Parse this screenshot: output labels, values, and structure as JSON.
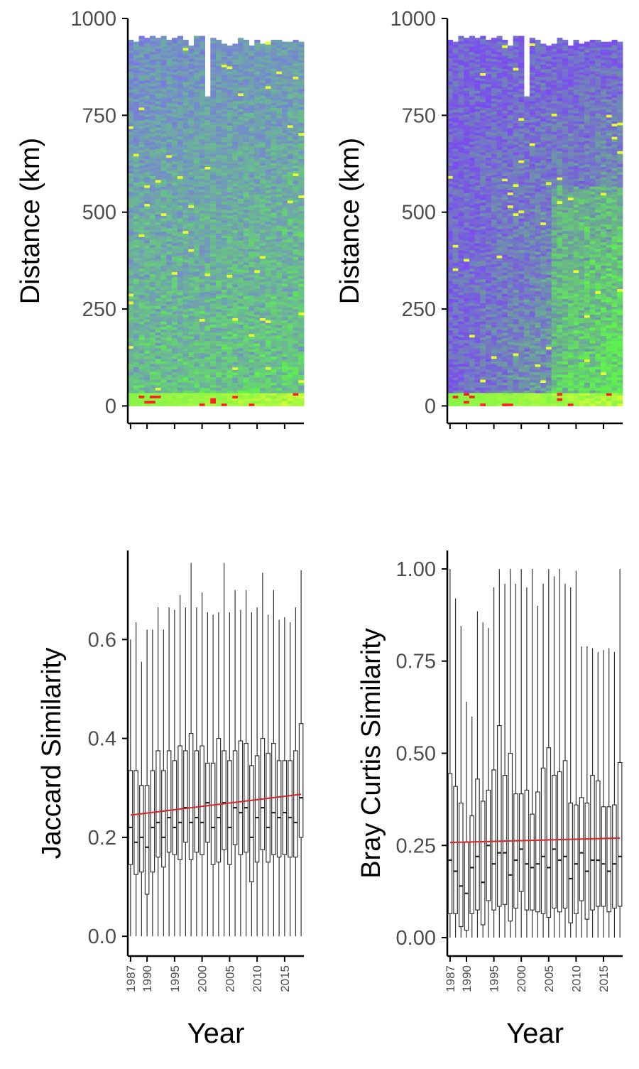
{
  "chart_data": [
    {
      "type": "heatmap",
      "panel": "top-left",
      "xlabel": "",
      "ylabel": "Distance (km)",
      "x_tick_values": [
        1987,
        1990,
        1995,
        2000,
        2005,
        2010,
        2015
      ],
      "x_tick_labels_shown": false,
      "xlim": [
        1986.5,
        2018.5
      ],
      "ylim": [
        -45,
        1000
      ],
      "y_ticks": [
        0,
        250,
        500,
        750,
        1000
      ],
      "years": [
        1987,
        1988,
        1989,
        1990,
        1991,
        1992,
        1993,
        1994,
        1995,
        1996,
        1997,
        1998,
        1999,
        2000,
        2001,
        2002,
        2003,
        2004,
        2005,
        2006,
        2007,
        2008,
        2009,
        2010,
        2011,
        2012,
        2013,
        2014,
        2015,
        2016,
        2017,
        2018
      ],
      "max_distance_km": [
        945,
        940,
        955,
        950,
        955,
        950,
        955,
        945,
        950,
        955,
        945,
        930,
        955,
        955,
        940,
        950,
        945,
        935,
        930,
        935,
        950,
        945,
        930,
        945,
        935,
        940,
        945,
        945,
        940,
        940,
        945,
        940
      ],
      "gaps": [
        {
          "year": 2001,
          "from_km": 800,
          "to_km": 960
        }
      ],
      "colors": {
        "low": "#7b6cf0",
        "mid": "#5ff04f",
        "high": "#e8ff30",
        "peak": "#ff2020"
      },
      "fill_description": "mostly blue/green rows, yellow-green band near 0 km"
    },
    {
      "type": "heatmap",
      "panel": "top-right",
      "xlabel": "",
      "ylabel": "Distance (km)",
      "x_tick_values": [
        1987,
        1990,
        1995,
        2000,
        2005,
        2010,
        2015
      ],
      "x_tick_labels_shown": false,
      "xlim": [
        1986.5,
        2018.5
      ],
      "ylim": [
        -45,
        1000
      ],
      "y_ticks": [
        0,
        250,
        500,
        750,
        1000
      ],
      "years": [
        1987,
        1988,
        1989,
        1990,
        1991,
        1992,
        1993,
        1994,
        1995,
        1996,
        1997,
        1998,
        1999,
        2000,
        2001,
        2002,
        2003,
        2004,
        2005,
        2006,
        2007,
        2008,
        2009,
        2010,
        2011,
        2012,
        2013,
        2014,
        2015,
        2016,
        2017,
        2018
      ],
      "max_distance_km": [
        945,
        940,
        955,
        950,
        955,
        950,
        955,
        945,
        950,
        955,
        945,
        930,
        955,
        955,
        940,
        950,
        945,
        935,
        930,
        935,
        950,
        945,
        930,
        945,
        935,
        940,
        945,
        945,
        940,
        940,
        945,
        940
      ],
      "gaps": [
        {
          "year": 2001,
          "from_km": 800,
          "to_km": 960
        }
      ],
      "colors": {
        "low": "#7b4cf0",
        "mid": "#5ff04f",
        "high": "#e8ff30",
        "peak": "#ff2020"
      },
      "fill_description": "more purple in upper rows, green/yellow increasing in later years"
    },
    {
      "type": "boxplot",
      "panel": "bottom-left",
      "xlabel": "Year",
      "ylabel": "Jaccard Similarity",
      "xlim": [
        1986.5,
        2018.5
      ],
      "ylim": [
        -0.04,
        0.78
      ],
      "y_ticks": [
        0.0,
        0.2,
        0.4,
        0.6
      ],
      "y_tick_labels": [
        "0.0",
        "0.2",
        "0.4",
        "0.6"
      ],
      "x_ticks": [
        1987,
        1990,
        1995,
        2000,
        2005,
        2010,
        2015
      ],
      "x_tick_labels": [
        "1987",
        "1990",
        "1995",
        "2000",
        "2005",
        "2010",
        "2015"
      ],
      "years": [
        1987,
        1988,
        1989,
        1990,
        1991,
        1992,
        1993,
        1994,
        1995,
        1996,
        1997,
        1998,
        1999,
        2000,
        2001,
        2002,
        2003,
        2004,
        2005,
        2006,
        2007,
        2008,
        2009,
        2010,
        2011,
        2012,
        2013,
        2014,
        2015,
        2016,
        2017,
        2018
      ],
      "q1": [
        0.145,
        0.125,
        0.13,
        0.085,
        0.13,
        0.16,
        0.14,
        0.17,
        0.165,
        0.155,
        0.19,
        0.155,
        0.17,
        0.165,
        0.19,
        0.145,
        0.15,
        0.175,
        0.145,
        0.185,
        0.165,
        0.17,
        0.11,
        0.15,
        0.175,
        0.15,
        0.165,
        0.16,
        0.165,
        0.16,
        0.16,
        0.2
      ],
      "median": [
        0.22,
        0.19,
        0.2,
        0.18,
        0.22,
        0.23,
        0.2,
        0.24,
        0.22,
        0.23,
        0.26,
        0.23,
        0.24,
        0.23,
        0.27,
        0.22,
        0.24,
        0.27,
        0.22,
        0.26,
        0.25,
        0.26,
        0.2,
        0.24,
        0.26,
        0.22,
        0.25,
        0.24,
        0.25,
        0.24,
        0.23,
        0.28
      ],
      "q3": [
        0.335,
        0.335,
        0.305,
        0.305,
        0.335,
        0.375,
        0.335,
        0.375,
        0.355,
        0.385,
        0.375,
        0.41,
        0.375,
        0.385,
        0.35,
        0.35,
        0.4,
        0.375,
        0.355,
        0.375,
        0.395,
        0.39,
        0.345,
        0.365,
        0.4,
        0.37,
        0.39,
        0.355,
        0.355,
        0.355,
        0.375,
        0.43
      ],
      "ymax": [
        0.6,
        0.635,
        0.555,
        0.62,
        0.62,
        0.665,
        0.62,
        0.665,
        0.66,
        0.69,
        0.665,
        0.755,
        0.665,
        0.695,
        0.655,
        0.65,
        0.655,
        0.755,
        0.655,
        0.7,
        0.66,
        0.7,
        0.655,
        0.665,
        0.735,
        0.65,
        0.7,
        0.64,
        0.645,
        0.635,
        0.665,
        0.74
      ],
      "ymin": [
        0.0,
        0.0,
        0.0,
        0.0,
        0.0,
        0.0,
        0.0,
        0.0,
        0.0,
        0.0,
        0.0,
        0.0,
        0.0,
        0.0,
        0.0,
        0.0,
        0.0,
        0.0,
        0.0,
        0.0,
        0.0,
        0.0,
        0.0,
        0.0,
        0.0,
        0.0,
        0.0,
        0.0,
        0.0,
        0.0,
        0.0,
        0.0
      ],
      "trend": {
        "x": [
          1987,
          2018
        ],
        "y": [
          0.245,
          0.287
        ],
        "color": "#d62728"
      }
    },
    {
      "type": "boxplot",
      "panel": "bottom-right",
      "xlabel": "Year",
      "ylabel": "Bray Curtis Similarity",
      "xlim": [
        1986.5,
        2018.5
      ],
      "ylim": [
        -0.05,
        1.05
      ],
      "y_ticks": [
        0.0,
        0.25,
        0.5,
        0.75,
        1.0
      ],
      "y_tick_labels": [
        "0.00",
        "0.25",
        "0.50",
        "0.75",
        "1.00"
      ],
      "x_ticks": [
        1987,
        1990,
        1995,
        2000,
        2005,
        2010,
        2015
      ],
      "x_tick_labels": [
        "1987",
        "1990",
        "1995",
        "2000",
        "2005",
        "2010",
        "2015"
      ],
      "years": [
        1987,
        1988,
        1989,
        1990,
        1991,
        1992,
        1993,
        1994,
        1995,
        1996,
        1997,
        1998,
        1999,
        2000,
        2001,
        2002,
        2003,
        2004,
        2005,
        2006,
        2007,
        2008,
        2009,
        2010,
        2011,
        2012,
        2013,
        2014,
        2015,
        2016,
        2017,
        2018
      ],
      "q1": [
        0.065,
        0.065,
        0.03,
        0.02,
        0.065,
        0.075,
        0.035,
        0.1,
        0.075,
        0.085,
        0.09,
        0.045,
        0.08,
        0.125,
        0.075,
        0.075,
        0.07,
        0.065,
        0.055,
        0.08,
        0.07,
        0.08,
        0.04,
        0.065,
        0.1,
        0.05,
        0.075,
        0.085,
        0.085,
        0.07,
        0.08,
        0.085
      ],
      "median": [
        0.21,
        0.18,
        0.14,
        0.12,
        0.19,
        0.22,
        0.15,
        0.25,
        0.2,
        0.23,
        0.23,
        0.17,
        0.21,
        0.24,
        0.2,
        0.19,
        0.2,
        0.22,
        0.19,
        0.24,
        0.21,
        0.22,
        0.16,
        0.2,
        0.23,
        0.18,
        0.21,
        0.21,
        0.2,
        0.18,
        0.2,
        0.22
      ],
      "q3": [
        0.445,
        0.41,
        0.365,
        0.26,
        0.33,
        0.43,
        0.37,
        0.4,
        0.455,
        0.575,
        0.44,
        0.5,
        0.39,
        0.39,
        0.4,
        0.335,
        0.395,
        0.46,
        0.515,
        0.44,
        0.45,
        0.48,
        0.365,
        0.36,
        0.38,
        0.365,
        0.44,
        0.425,
        0.355,
        0.355,
        0.36,
        0.475
      ],
      "ymax": [
        1.0,
        0.92,
        0.845,
        0.64,
        0.6,
        0.885,
        0.855,
        0.84,
        0.95,
        1.0,
        0.96,
        1.0,
        0.96,
        1.0,
        0.95,
        1.0,
        0.9,
        0.96,
        1.0,
        0.98,
        1.0,
        0.96,
        0.95,
        0.995,
        0.79,
        0.79,
        0.785,
        0.775,
        0.78,
        0.785,
        0.775,
        1.0
      ],
      "ymin": [
        0.0,
        0.0,
        0.0,
        0.0,
        0.0,
        0.0,
        0.0,
        0.0,
        0.0,
        0.0,
        0.0,
        0.0,
        0.0,
        0.0,
        0.0,
        0.0,
        0.0,
        0.0,
        0.0,
        0.0,
        0.0,
        0.0,
        0.0,
        0.0,
        0.0,
        0.0,
        0.0,
        0.0,
        0.0,
        0.0,
        0.0,
        0.0
      ],
      "trend": {
        "x": [
          1987,
          2018
        ],
        "y": [
          0.258,
          0.27
        ],
        "color": "#d62728"
      }
    }
  ]
}
